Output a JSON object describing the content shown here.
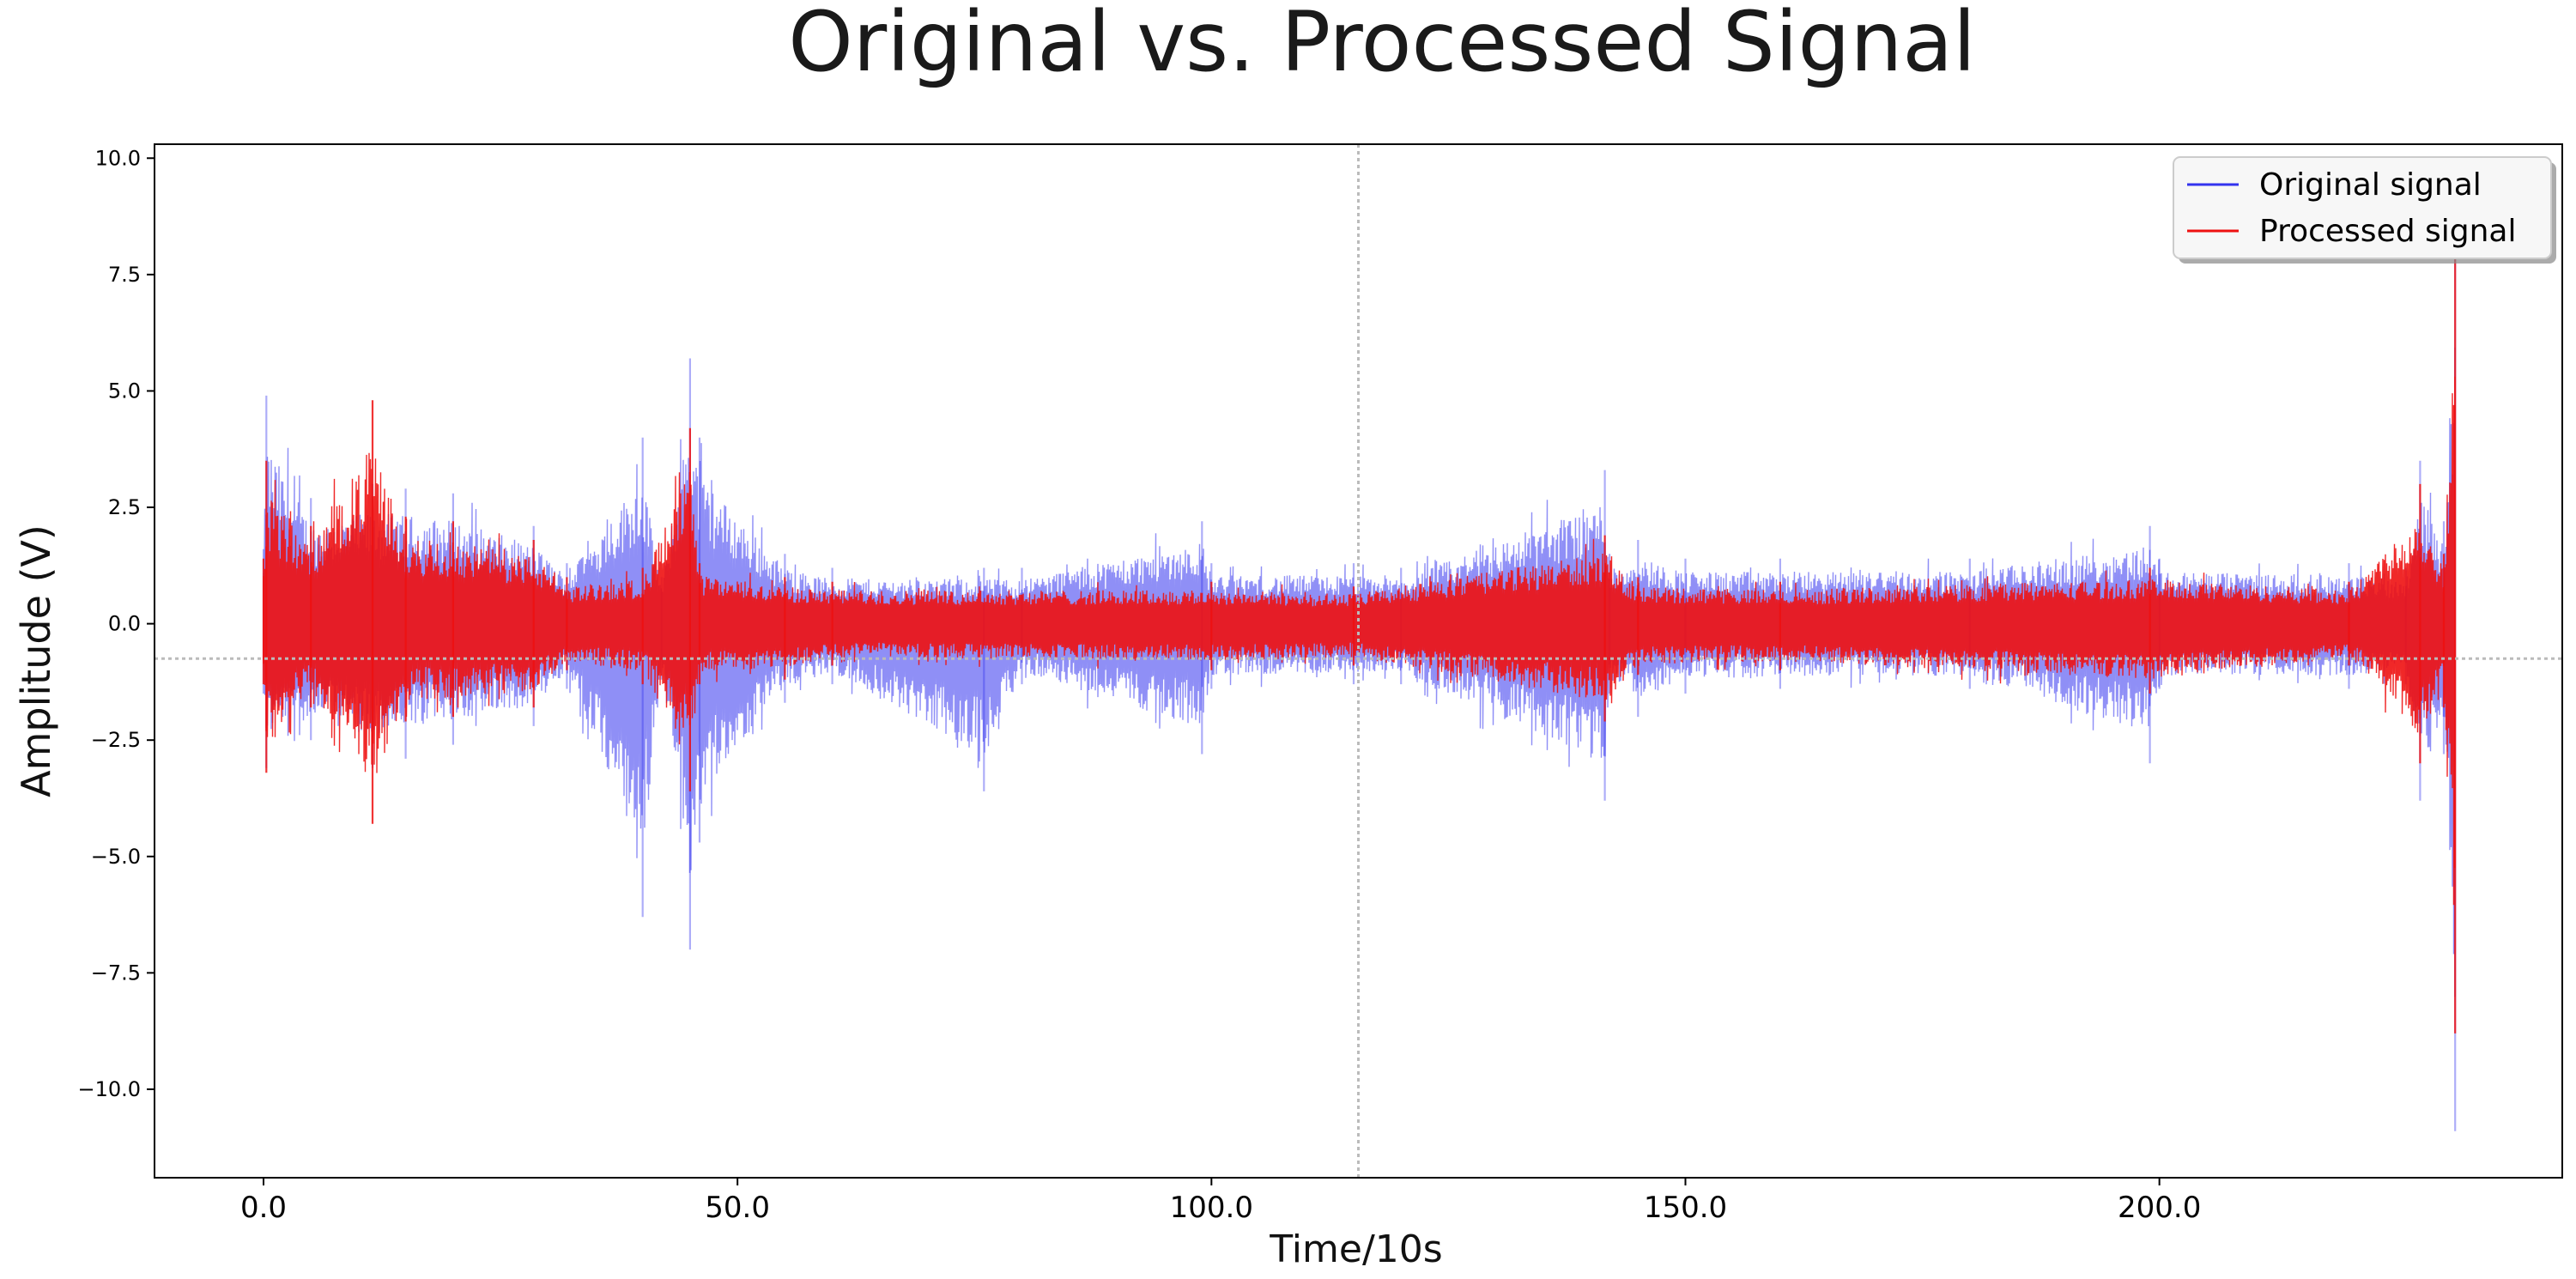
{
  "chart_data": {
    "type": "line",
    "title": "Original vs. Processed Signal",
    "xlabel": "Time/10s",
    "ylabel": "Amplitude (V)",
    "xlim": [
      -11.5,
      242.5
    ],
    "ylim": [
      -11.9,
      10.3
    ],
    "xticks": [
      0,
      50,
      100,
      150,
      200
    ],
    "xtick_labels": [
      "0.0",
      "50.0",
      "100.0",
      "150.0",
      "200.0"
    ],
    "yticks": [
      10,
      7.5,
      5,
      2.5,
      0,
      -2.5,
      -5,
      -7.5,
      -10
    ],
    "ytick_labels": [
      "10.0",
      "7.5",
      "5.0",
      "2.5",
      "0.0",
      "−2.5",
      "−5.0",
      "−7.5",
      "−10.0"
    ],
    "grid": false,
    "reference_lines": {
      "vertical_x": 115.5,
      "horizontal_y": -0.75,
      "style": "dotted",
      "color": "#bbbbbb"
    },
    "legend": {
      "placement": "top-right",
      "entries": [
        {
          "label": "Original signal",
          "color": "#3333ee"
        },
        {
          "label": "Processed signal",
          "color": "#ee1111"
        }
      ]
    },
    "series": [
      {
        "name": "Original signal",
        "color": "#3333ee",
        "x": [
          0,
          0.3,
          5,
          11.5,
          15,
          20,
          28.5,
          32,
          40,
          42,
          45,
          46,
          55,
          60,
          76,
          80,
          99,
          100,
          115,
          120,
          141.5,
          142,
          145,
          150,
          160,
          180,
          199,
          200,
          220,
          226,
          227.5,
          230,
          231.2
        ],
        "max": [
          1.6,
          4.9,
          2.7,
          3.0,
          2.9,
          2.8,
          2.1,
          1.3,
          4.0,
          1.0,
          5.7,
          4.0,
          1.5,
          1.2,
          1.2,
          1.2,
          2.2,
          1.3,
          1.3,
          1.2,
          3.3,
          1.5,
          1.8,
          1.4,
          1.4,
          1.4,
          2.1,
          1.4,
          1.3,
          1.2,
          3.5,
          2.2,
          8.5
        ],
        "min": [
          -1.5,
          -3.1,
          -2.5,
          -3.1,
          -2.9,
          -2.6,
          -2.2,
          -1.4,
          -6.3,
          -1.2,
          -7.0,
          -4.7,
          -1.7,
          -1.3,
          -3.6,
          -1.3,
          -2.8,
          -1.4,
          -1.3,
          -1.3,
          -3.8,
          -1.5,
          -2.0,
          -1.5,
          -1.4,
          -1.4,
          -3.0,
          -1.4,
          -1.4,
          -1.3,
          -3.8,
          -2.8,
          -10.9
        ]
      },
      {
        "name": "Processed signal",
        "color": "#ee1111",
        "x": [
          0,
          0.3,
          5,
          11.5,
          15,
          20,
          28.5,
          32,
          40,
          45,
          46,
          55,
          60,
          100,
          115,
          141.5,
          145,
          160,
          199,
          220,
          227.5,
          230,
          231.2
        ],
        "max": [
          1.4,
          3.5,
          2.1,
          4.8,
          2.3,
          2.2,
          1.8,
          1.0,
          1.2,
          4.2,
          1.3,
          1.0,
          0.9,
          0.9,
          0.8,
          1.9,
          1.0,
          0.9,
          1.2,
          0.9,
          3.0,
          1.5,
          8.0
        ],
        "min": [
          -1.3,
          -3.2,
          -1.8,
          -4.3,
          -2.1,
          -2.0,
          -1.8,
          -1.0,
          -1.3,
          -3.6,
          -1.3,
          -1.2,
          -0.9,
          -1.0,
          -0.9,
          -2.1,
          -1.1,
          -1.0,
          -1.5,
          -0.9,
          -3.0,
          -1.8,
          -8.8
        ]
      }
    ]
  }
}
